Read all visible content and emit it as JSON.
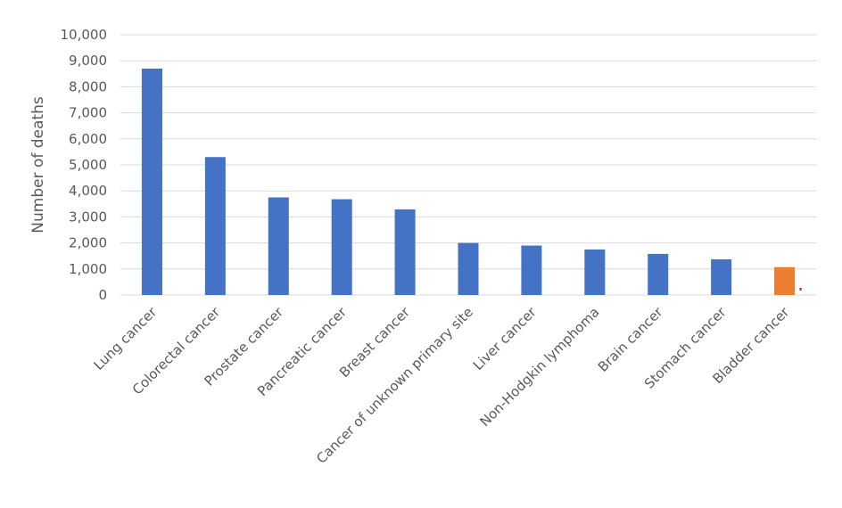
{
  "chart_data": {
    "type": "bar",
    "title": "",
    "xlabel": "",
    "ylabel": "Number of deaths",
    "ylim": [
      0,
      10000
    ],
    "yticks": [
      "0",
      "1,000",
      "2,000",
      "3,000",
      "4,000",
      "5,000",
      "6,000",
      "7,000",
      "8,000",
      "9,000",
      "10,000"
    ],
    "grid": "horizontal",
    "categories": [
      "Lung cancer",
      "Colorectal cancer",
      "Prostate cancer",
      "Pancreatic cancer",
      "Breast cancer",
      "Cancer of unknown primary site",
      "Liver cancer",
      "Non-Hodgkin lymphoma",
      "Brain cancer",
      "Stomach cancer",
      "Bladder cancer"
    ],
    "values": [
      8700,
      5300,
      3750,
      3680,
      3290,
      2000,
      1900,
      1750,
      1580,
      1370,
      1070
    ],
    "colors": [
      "#4472c4",
      "#4472c4",
      "#4472c4",
      "#4472c4",
      "#4472c4",
      "#4472c4",
      "#4472c4",
      "#4472c4",
      "#4472c4",
      "#4472c4",
      "#ed7d31"
    ],
    "marker_color": "#ff0000"
  }
}
